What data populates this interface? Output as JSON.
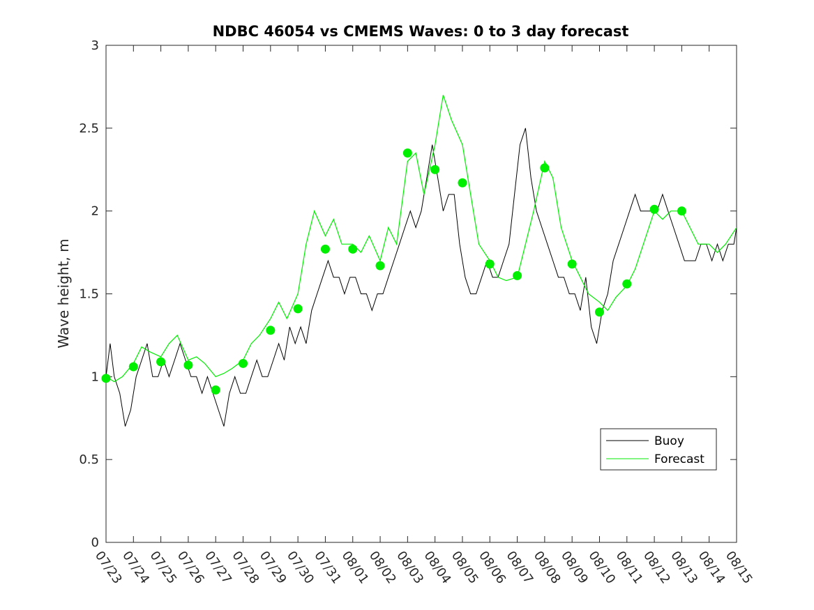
{
  "chart_data": {
    "type": "line",
    "title": "NDBC 46054 vs CMEMS Waves: 0 to 3 day forecast",
    "xlabel": "",
    "ylabel": "Wave height, m",
    "ylim": [
      0,
      3
    ],
    "yticks": [
      "0",
      "0.5",
      "1",
      "1.5",
      "2",
      "2.5",
      "3"
    ],
    "xlim": [
      "07/23",
      "08/15"
    ],
    "xticks": [
      "07/23",
      "07/24",
      "07/25",
      "07/26",
      "07/27",
      "07/28",
      "07/29",
      "07/30",
      "07/31",
      "08/01",
      "08/02",
      "08/03",
      "08/04",
      "08/05",
      "08/06",
      "08/07",
      "08/08",
      "08/09",
      "08/10",
      "08/11",
      "08/12",
      "08/13",
      "08/14",
      "08/15"
    ],
    "grid": false,
    "legend": {
      "position": "bottom-right",
      "entries": [
        {
          "name": "Buoy",
          "color": "#000000"
        },
        {
          "name": "Forecast",
          "color": "#00ee00"
        }
      ]
    },
    "colors": {
      "buoy": "#000000",
      "forecast": "#00ee00"
    },
    "series": [
      {
        "name": "Buoy",
        "x_day": [
          0,
          0.15,
          0.3,
          0.5,
          0.7,
          0.9,
          1.1,
          1.3,
          1.5,
          1.7,
          1.9,
          2.1,
          2.3,
          2.5,
          2.7,
          2.9,
          3.1,
          3.3,
          3.5,
          3.7,
          3.9,
          4.1,
          4.3,
          4.5,
          4.7,
          4.9,
          5.1,
          5.3,
          5.5,
          5.7,
          5.9,
          6.1,
          6.3,
          6.5,
          6.7,
          6.9,
          7.1,
          7.3,
          7.5,
          7.7,
          7.9,
          8.1,
          8.3,
          8.5,
          8.7,
          8.9,
          9.1,
          9.3,
          9.5,
          9.7,
          9.9,
          10.1,
          10.3,
          10.5,
          10.7,
          10.9,
          11.1,
          11.3,
          11.5,
          11.7,
          11.9,
          12.1,
          12.3,
          12.5,
          12.7,
          12.9,
          13.1,
          13.3,
          13.5,
          13.7,
          13.9,
          14.1,
          14.3,
          14.5,
          14.7,
          14.9,
          15.1,
          15.3,
          15.5,
          15.7,
          15.9,
          16.1,
          16.3,
          16.5,
          16.7,
          16.9,
          17.1,
          17.3,
          17.5,
          17.7,
          17.9,
          18.1,
          18.3,
          18.5,
          18.7,
          18.9,
          19.1,
          19.3,
          19.5,
          19.7,
          19.9,
          20.1,
          20.3,
          20.5,
          20.7,
          20.9,
          21.1,
          21.3,
          21.5,
          21.7,
          21.9,
          22.1,
          22.3,
          22.5,
          22.7,
          22.9,
          23.0
        ],
        "values": [
          1.0,
          1.2,
          1.0,
          0.9,
          0.7,
          0.8,
          1.0,
          1.1,
          1.2,
          1.0,
          1.0,
          1.1,
          1.0,
          1.1,
          1.2,
          1.1,
          1.0,
          1.0,
          0.9,
          1.0,
          0.9,
          0.8,
          0.7,
          0.9,
          1.0,
          0.9,
          0.9,
          1.0,
          1.1,
          1.0,
          1.0,
          1.1,
          1.2,
          1.1,
          1.3,
          1.2,
          1.3,
          1.2,
          1.4,
          1.5,
          1.6,
          1.7,
          1.6,
          1.6,
          1.5,
          1.6,
          1.6,
          1.5,
          1.5,
          1.4,
          1.5,
          1.5,
          1.6,
          1.7,
          1.8,
          1.9,
          2.0,
          1.9,
          2.0,
          2.2,
          2.4,
          2.2,
          2.0,
          2.1,
          2.1,
          1.8,
          1.6,
          1.5,
          1.5,
          1.6,
          1.7,
          1.6,
          1.6,
          1.7,
          1.8,
          2.1,
          2.4,
          2.5,
          2.2,
          2.0,
          1.9,
          1.8,
          1.7,
          1.6,
          1.6,
          1.5,
          1.5,
          1.4,
          1.6,
          1.3,
          1.2,
          1.4,
          1.5,
          1.7,
          1.8,
          1.9,
          2.0,
          2.1,
          2.0,
          2.0,
          2.0,
          2.0,
          2.1,
          2.0,
          1.9,
          1.8,
          1.7,
          1.7,
          1.7,
          1.8,
          1.8,
          1.7,
          1.8,
          1.7,
          1.8,
          1.8,
          1.9
        ]
      },
      {
        "name": "Forecast",
        "x_day": [
          0,
          0.3,
          0.6,
          1.0,
          1.3,
          1.6,
          2.0,
          2.3,
          2.6,
          3.0,
          3.3,
          3.6,
          4.0,
          4.3,
          4.6,
          5.0,
          5.3,
          5.6,
          6.0,
          6.3,
          6.6,
          7.0,
          7.3,
          7.6,
          8.0,
          8.3,
          8.6,
          9.0,
          9.3,
          9.6,
          10.0,
          10.3,
          10.6,
          11.0,
          11.3,
          11.6,
          12.0,
          12.3,
          12.6,
          13.0,
          13.3,
          13.6,
          14.0,
          14.3,
          14.6,
          15.0,
          15.3,
          15.6,
          16.0,
          16.3,
          16.6,
          17.0,
          17.3,
          17.6,
          18.0,
          18.3,
          18.6,
          19.0,
          19.3,
          19.6,
          20.0,
          20.3,
          20.6,
          21.0,
          21.3,
          21.6,
          22.0,
          22.3,
          22.6,
          23.0
        ],
        "values": [
          1.0,
          0.97,
          1.0,
          1.08,
          1.18,
          1.15,
          1.12,
          1.2,
          1.25,
          1.1,
          1.12,
          1.08,
          1.0,
          1.02,
          1.05,
          1.1,
          1.2,
          1.25,
          1.35,
          1.45,
          1.35,
          1.5,
          1.8,
          2.0,
          1.85,
          1.95,
          1.8,
          1.8,
          1.75,
          1.85,
          1.7,
          1.9,
          1.8,
          2.3,
          2.35,
          2.1,
          2.4,
          2.7,
          2.55,
          2.4,
          2.1,
          1.8,
          1.7,
          1.6,
          1.58,
          1.6,
          1.8,
          2.0,
          2.3,
          2.2,
          1.9,
          1.7,
          1.6,
          1.5,
          1.45,
          1.4,
          1.48,
          1.55,
          1.65,
          1.8,
          2.0,
          1.95,
          2.0,
          2.0,
          1.9,
          1.8,
          1.8,
          1.75,
          1.8,
          1.9
        ]
      },
      {
        "name": "Forecast markers",
        "x_day": [
          0,
          1,
          2,
          3,
          4,
          5,
          6,
          7,
          8,
          9,
          10,
          11,
          12,
          13,
          14,
          15,
          16,
          17,
          18,
          19,
          20,
          21
        ],
        "values": [
          0.99,
          1.06,
          1.09,
          1.07,
          0.92,
          1.08,
          1.28,
          1.41,
          1.77,
          1.77,
          1.67,
          2.35,
          2.25,
          2.17,
          1.68,
          1.61,
          2.26,
          1.68,
          1.39,
          1.56,
          2.01,
          2.0
        ]
      }
    ]
  }
}
